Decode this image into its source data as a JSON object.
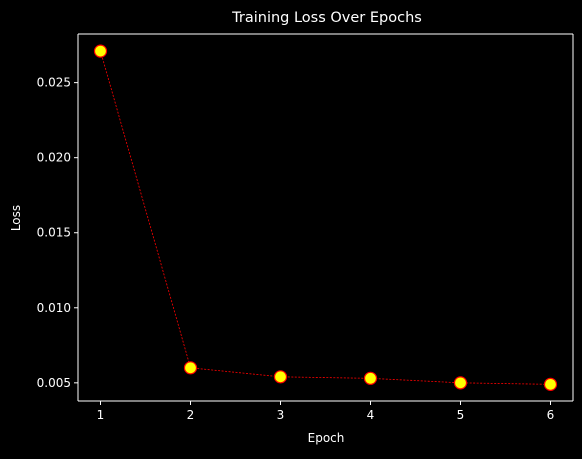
{
  "chart_data": {
    "type": "line",
    "title": "Training Loss Over Epochs",
    "xlabel": "Epoch",
    "ylabel": "Loss",
    "x": [
      1,
      2,
      3,
      4,
      5,
      6
    ],
    "series": [
      {
        "values": [
          0.0271,
          0.006,
          0.0054,
          0.0053,
          0.005,
          0.0049
        ]
      }
    ],
    "xlim": [
      0.75,
      6.25
    ],
    "ylim": [
      0.00379,
      0.02824
    ],
    "xticks": [
      1,
      2,
      3,
      4,
      5,
      6
    ],
    "xtick_labels": [
      "1",
      "2",
      "3",
      "4",
      "5",
      "6"
    ],
    "yticks": [
      0.005,
      0.01,
      0.015,
      0.02,
      0.025
    ],
    "ytick_labels": [
      "0.005",
      "0.010",
      "0.015",
      "0.020",
      "0.025"
    ],
    "grid": false,
    "line_style": "dashed",
    "colors": {
      "background": "#000000",
      "line": "#ff0000",
      "marker_fill": "#ffff00",
      "marker_edge": "#ff0000",
      "axes": "#ffffff",
      "text": "#ffffff"
    }
  }
}
